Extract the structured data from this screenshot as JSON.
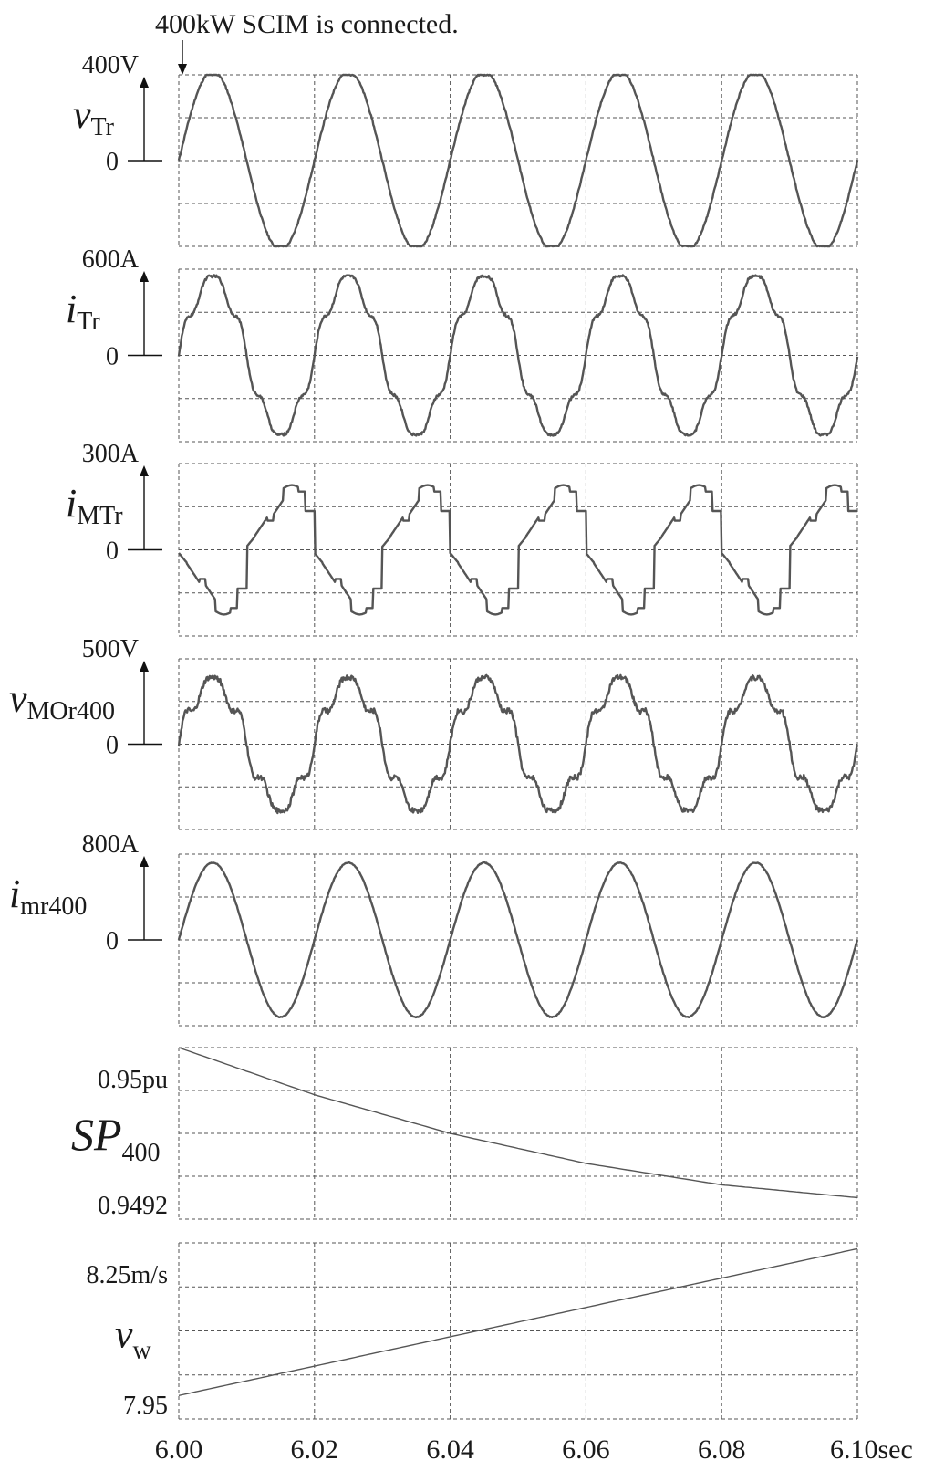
{
  "annotation": "400kW SCIM is connected.",
  "x_ticks": [
    "6.00",
    "6.02",
    "6.04",
    "6.06",
    "6.08",
    "6.10sec"
  ],
  "chart_data": [
    {
      "type": "line",
      "name_main": "v",
      "name_sub": "Tr",
      "name_italic": true,
      "top_label": "400V",
      "zero_label": "0",
      "x_range": [
        6.0,
        6.1
      ],
      "ylim": [
        -400,
        400
      ],
      "waveform": {
        "kind": "sine",
        "freq_hz": 50,
        "amplitude": 400,
        "phase_deg": 0,
        "clip": 0.96,
        "noise": 0.02
      },
      "grid": true
    },
    {
      "type": "line",
      "name_main": "i",
      "name_sub": "Tr",
      "name_italic": true,
      "top_label": "600A",
      "zero_label": "0",
      "x_range": [
        6.0,
        6.1
      ],
      "ylim": [
        -400,
        400
      ],
      "waveform": {
        "kind": "distorted",
        "freq_hz": 50,
        "amplitude": 360,
        "phase_deg": 0,
        "harm5": 0.08,
        "harm7": 0.06,
        "noise": 0.03
      },
      "grid": true
    },
    {
      "type": "line",
      "name_main": "i",
      "name_sub": "MTr",
      "name_italic": true,
      "top_label": "300A",
      "zero_label": "0",
      "x_range": [
        6.0,
        6.1
      ],
      "ylim": [
        -400,
        400
      ],
      "waveform": {
        "kind": "stepped",
        "freq_hz": 50,
        "amplitude": 300,
        "phase_deg": 0
      },
      "grid": true
    },
    {
      "type": "line",
      "name_main": "v",
      "name_sub": "MOr400",
      "name_italic": true,
      "top_label": "500V",
      "zero_label": "0",
      "x_range": [
        6.0,
        6.1
      ],
      "ylim": [
        -400,
        400
      ],
      "waveform": {
        "kind": "distorted",
        "freq_hz": 50,
        "amplitude": 300,
        "phase_deg": 0,
        "harm5": 0.12,
        "harm7": 0.08,
        "noise": 0.06
      },
      "grid": true
    },
    {
      "type": "line",
      "name_main": "i",
      "name_sub": "mr400",
      "name_italic": true,
      "top_label": "800A",
      "zero_label": "0",
      "x_range": [
        6.0,
        6.1
      ],
      "ylim": [
        -400,
        400
      ],
      "waveform": {
        "kind": "sine",
        "freq_hz": 50,
        "amplitude": 360,
        "phase_deg": 0,
        "clip": 1.0,
        "noise": 0.01
      },
      "grid": true
    },
    {
      "type": "line",
      "name_main": "SP",
      "name_sub": "400",
      "name_italic": true,
      "top_label": "0.95pu",
      "bottom_label": "0.9492",
      "x_range": [
        6.0,
        6.1
      ],
      "ylim": [
        0.9492,
        0.95
      ],
      "x": [
        6.0,
        6.02,
        6.04,
        6.06,
        6.08,
        6.1
      ],
      "values": [
        0.95,
        0.94978,
        0.9496,
        0.94946,
        0.94936,
        0.9493
      ],
      "grid": true
    },
    {
      "type": "line",
      "name_main": "v",
      "name_sub": "w",
      "name_italic": true,
      "top_label": "8.25m/s",
      "bottom_label": "7.95",
      "x_range": [
        6.0,
        6.1
      ],
      "ylim": [
        7.95,
        8.25
      ],
      "x": [
        6.0,
        6.1
      ],
      "values": [
        7.99,
        8.24
      ],
      "grid": true
    }
  ]
}
